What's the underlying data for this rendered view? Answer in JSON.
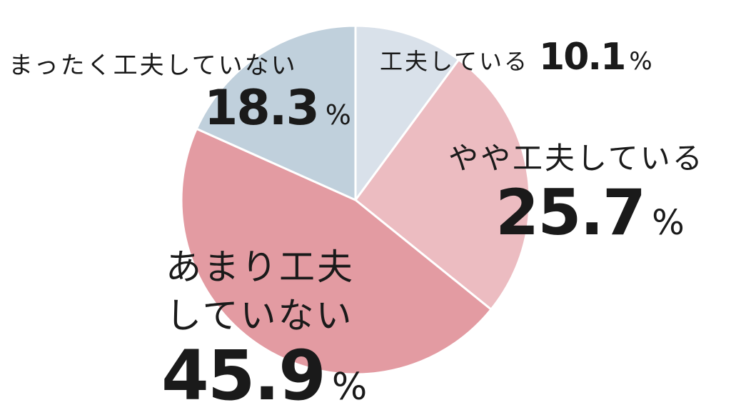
{
  "chart_data": {
    "type": "pie",
    "unit": "%",
    "slices": [
      {
        "label": "工夫している",
        "value": 10.1,
        "color": "#d9e1ea"
      },
      {
        "label": "やや工夫している",
        "value": 25.7,
        "color": "#ecbcc1"
      },
      {
        "label": "あまり工夫していない",
        "value": 45.9,
        "color": "#e39ba2",
        "label_lines": [
          "あまり工夫",
          "していない"
        ]
      },
      {
        "label": "まったく工夫していない",
        "value": 18.3,
        "color": "#c0d0dc"
      }
    ]
  }
}
